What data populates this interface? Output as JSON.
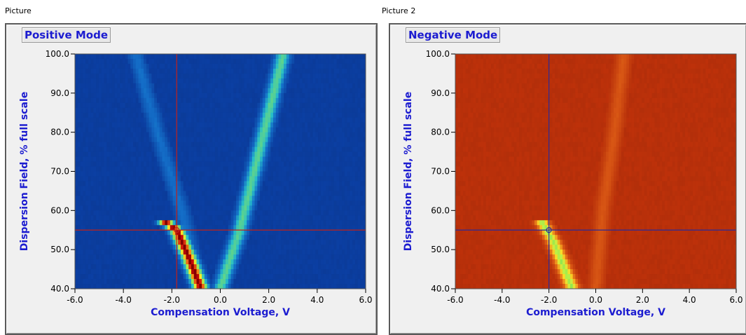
{
  "captions": {
    "left": "Picture",
    "right": "Picture 2"
  },
  "chart_data": [
    {
      "type": "heatmap",
      "title": "Positive Mode",
      "xlabel": "Compensation Voltage, V",
      "ylabel": "Dispersion Field, % full scale",
      "xlim": [
        -6.0,
        6.0
      ],
      "ylim": [
        40.0,
        100.0
      ],
      "x_ticks": [
        "-6.0",
        "-4.0",
        "-2.0",
        "0.0",
        "2.0",
        "4.0",
        "6.0"
      ],
      "y_ticks": [
        "40.0",
        "50.0",
        "60.0",
        "70.0",
        "80.0",
        "90.0",
        "100.0"
      ],
      "colormap": "jet",
      "background_color": "#0b3d9e",
      "crosshair": {
        "x": -1.8,
        "y": 55.0,
        "color": "#c0201a"
      },
      "features": [
        {
          "name": "intense branch",
          "points": [
            [
              -2.5,
              58.0
            ],
            [
              -1.8,
              55.0
            ],
            [
              -1.3,
              48.0
            ],
            [
              -0.8,
              40.0
            ]
          ],
          "peak_level": 1.0
        },
        {
          "name": "weak branch",
          "points": [
            [
              0.0,
              40.0
            ],
            [
              0.8,
              55.0
            ],
            [
              1.6,
              75.0
            ],
            [
              2.6,
              100.0
            ]
          ],
          "peak_level": 0.45
        },
        {
          "name": "faint branch",
          "points": [
            [
              -3.5,
              100.0
            ],
            [
              -2.6,
              80.0
            ],
            [
              -1.6,
              60.0
            ],
            [
              -0.8,
              40.0
            ]
          ],
          "peak_level": 0.18
        }
      ]
    },
    {
      "type": "heatmap",
      "title": "Negative Mode",
      "xlabel": "Compensation Voltage, V",
      "ylabel": "Dispersion Field, % full scale",
      "xlim": [
        -6.0,
        6.0
      ],
      "ylim": [
        40.0,
        100.0
      ],
      "x_ticks": [
        "-6.0",
        "-4.0",
        "-2.0",
        "0.0",
        "2.0",
        "4.0",
        "6.0"
      ],
      "y_ticks": [
        "40.0",
        "50.0",
        "60.0",
        "70.0",
        "80.0",
        "90.0",
        "100.0"
      ],
      "colormap": "hot",
      "background_color": "#b8300a",
      "crosshair": {
        "x": -2.0,
        "y": 55.0,
        "color": "#2a2a9a"
      },
      "features": [
        {
          "name": "intense branch",
          "points": [
            [
              -2.3,
              57.0
            ],
            [
              -1.8,
              52.0
            ],
            [
              -1.4,
              46.0
            ],
            [
              -1.0,
              40.0
            ]
          ],
          "peak_level": 0.9
        },
        {
          "name": "vertical band",
          "points": [
            [
              0.0,
              40.0
            ],
            [
              0.3,
              60.0
            ],
            [
              0.8,
              80.0
            ],
            [
              1.2,
              100.0
            ]
          ],
          "peak_level": 0.25
        }
      ]
    }
  ]
}
